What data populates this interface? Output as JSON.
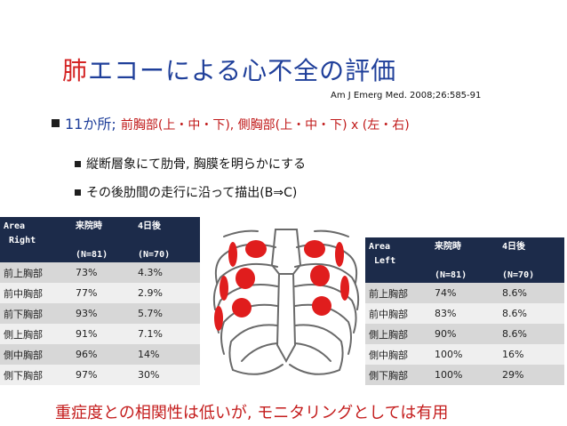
{
  "title": {
    "part1": "肺",
    "part2": "エコーによる心不全の評価"
  },
  "citation": "Am J Emerg Med. 2008;26:585-91",
  "bullet1": {
    "main": "11か所;",
    "detail": "前胸部(上・中・下), 側胸部(上・中・下) x (左・右)"
  },
  "bullet2": "縦断層象にて肋骨, 胸膜を明らかにする",
  "bullet3": "その後肋間の走行に沿って描出(B⇒C)",
  "table_right": {
    "header": [
      "Area\n Right",
      "来院時\n\n(N=81)",
      "4日後\n\n(N=70)"
    ],
    "rows": [
      [
        "前上胸部",
        "73%",
        "4.3%"
      ],
      [
        "前中胸部",
        "77%",
        "2.9%"
      ],
      [
        "前下胸部",
        "93%",
        "5.7%"
      ],
      [
        "側上胸部",
        "91%",
        "7.1%"
      ],
      [
        "側中胸部",
        "96%",
        "14%"
      ],
      [
        "側下胸部",
        "97%",
        "30%"
      ]
    ]
  },
  "table_left": {
    "header": [
      "Area\n Left",
      "来院時\n\n(N=81)",
      "4日後\n\n(N=70)"
    ],
    "rows": [
      [
        "前上胸部",
        "74%",
        "8.6%"
      ],
      [
        "前中胸部",
        "83%",
        "8.6%"
      ],
      [
        "側上胸部",
        "90%",
        "8.6%"
      ],
      [
        "側中胸部",
        "100%",
        "16%"
      ],
      [
        "側下胸部",
        "100%",
        "29%"
      ]
    ]
  },
  "bottom_note": "重症度との相関性は低いが, モニタリングとしては有用",
  "colors": {
    "title": "#1f3f9a",
    "accent_red": "#d42424",
    "table_header": "#1c2b4a"
  }
}
